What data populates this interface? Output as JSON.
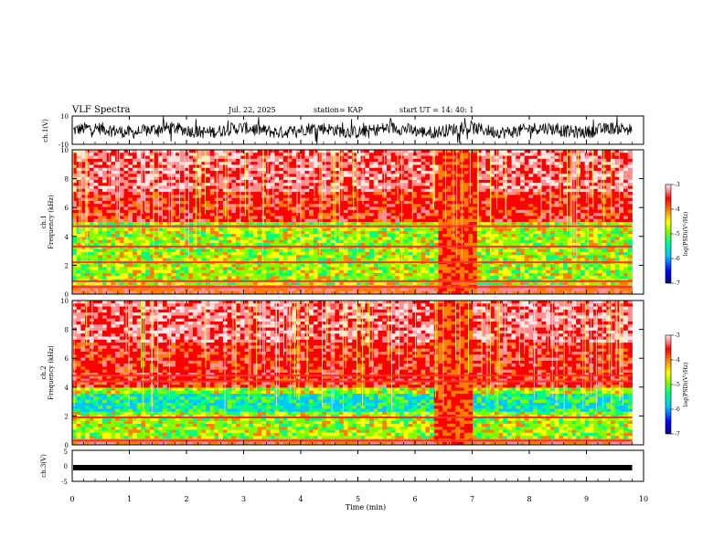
{
  "header": {
    "title": "VLF Spectra",
    "date": "Jul. 22, 2025",
    "station": "station= KAP",
    "start_ut": "start UT =  14: 40: 1"
  },
  "chart_data": [
    {
      "type": "line",
      "id": "ch1-timeseries",
      "ylabel": "ch.1(V)",
      "ylim": [
        -10,
        10
      ],
      "tick_labels": [
        "10",
        "-10"
      ],
      "data_xrange": [
        0,
        9.8
      ],
      "style": "noisy waveform centred near 0 V, amplitude roughly ±5 V with peaks to ±10 V"
    },
    {
      "type": "heatmap",
      "id": "ch1-spectrogram",
      "ylabel": "ch.1\nFrequency (kHz)",
      "ylim": [
        0,
        10
      ],
      "yticks": [
        0,
        2,
        4,
        6,
        8,
        10
      ],
      "xlim": [
        0,
        10
      ],
      "data_xrange": [
        0,
        9.8
      ],
      "features": {
        "upper_band_khz": [
          5,
          10
        ],
        "lower_band_khz": [
          0.6,
          5
        ],
        "bright_lines_khz": [
          0.5,
          0.9,
          2.2,
          3.3,
          4.7
        ],
        "burst_minutes": [
          6.45,
          7.05
        ]
      },
      "colorbar": {
        "label": "log(PSD)(V^2/Hz)",
        "min": -7,
        "max": -3,
        "ticks": [
          -3,
          -4,
          -5,
          -6,
          -7
        ]
      }
    },
    {
      "type": "heatmap",
      "id": "ch2-spectrogram",
      "ylabel": "ch.2\nFrequency (kHz)",
      "ylim": [
        0,
        10
      ],
      "yticks": [
        0,
        2,
        4,
        6,
        8,
        10
      ],
      "xlim": [
        0,
        10
      ],
      "data_xrange": [
        0,
        9.8
      ],
      "features": {
        "upper_band_khz": [
          4,
          10
        ],
        "lower_band_khz": [
          0.4,
          4
        ],
        "bright_lines_khz": [
          0.3,
          1.9,
          4.4,
          4.8
        ],
        "burst_minutes": [
          6.4,
          7.0
        ]
      },
      "colorbar": {
        "label": "log(PSD)(V^2/Hz)",
        "min": -7,
        "max": -3,
        "ticks": [
          -3,
          -4,
          -5,
          -6,
          -7
        ]
      }
    },
    {
      "type": "line",
      "id": "ch3-timeseries",
      "ylabel": "ch.3(V)",
      "ylim": [
        -5,
        5
      ],
      "tick_labels": [
        "5",
        "0",
        "-5"
      ],
      "level": -0.6,
      "data_xrange": [
        0,
        9.8
      ]
    }
  ],
  "xaxis": {
    "label": "Time (min)",
    "ticks": [
      0,
      1,
      2,
      3,
      4,
      5,
      6,
      7,
      8,
      9,
      10
    ]
  },
  "colors": {
    "scale": [
      "#00008c",
      "#0000ff",
      "#00c8ff",
      "#00ff80",
      "#80ff00",
      "#ffff00",
      "#ff8000",
      "#ff0000",
      "#ff9090",
      "#ffe6e6"
    ]
  }
}
